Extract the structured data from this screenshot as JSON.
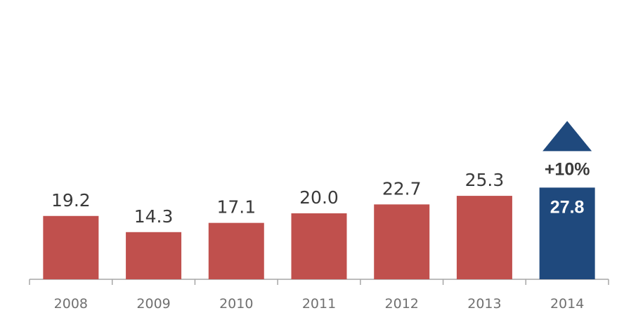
{
  "chart_data": {
    "type": "bar",
    "categories": [
      "2008",
      "2009",
      "2010",
      "2011",
      "2012",
      "2013",
      "2014"
    ],
    "values": [
      19.2,
      14.3,
      17.1,
      20.0,
      22.7,
      25.3,
      27.8
    ],
    "value_labels": [
      "19.2",
      "14.3",
      "17.1",
      "20.0",
      "22.7",
      "25.3",
      "27.8"
    ],
    "title": "",
    "xlabel": "",
    "ylabel": "",
    "ylim": [
      0,
      30
    ],
    "grid": false,
    "legend": "none",
    "highlight_index": 6,
    "annotation": {
      "text": "+10%",
      "icon": "triangle-up-icon",
      "target_index": 6
    },
    "colors": {
      "bar": "#c0504d",
      "highlight": "#1f497d",
      "axis": "#a6a6a6"
    }
  }
}
